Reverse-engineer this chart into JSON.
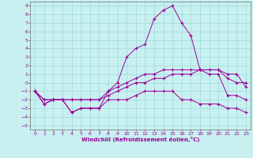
{
  "xlabel": "Windchill (Refroidissement éolien,°C)",
  "bg_color": "#c8f0f0",
  "line_color": "#990099",
  "grid_color": "#a0d8d8",
  "xlim": [
    -0.5,
    23.5
  ],
  "ylim": [
    -5.5,
    9.5
  ],
  "xticks": [
    0,
    1,
    2,
    3,
    4,
    5,
    6,
    7,
    8,
    9,
    10,
    11,
    12,
    13,
    14,
    15,
    16,
    17,
    18,
    19,
    20,
    21,
    22,
    23
  ],
  "yticks": [
    -5,
    -4,
    -3,
    -2,
    -1,
    0,
    1,
    2,
    3,
    4,
    5,
    6,
    7,
    8,
    9
  ],
  "lines": [
    {
      "x": [
        0,
        1,
        2,
        3,
        4,
        5,
        6,
        7,
        8,
        9,
        10,
        11,
        12,
        13,
        14,
        15,
        16,
        17,
        18,
        19,
        20,
        21,
        22,
        23
      ],
      "y": [
        -1,
        -2.5,
        -2,
        -2,
        -3.5,
        -3,
        -3,
        -3,
        -1,
        0,
        3,
        4,
        4.5,
        7.5,
        8.5,
        9,
        7,
        5.5,
        1.5,
        1,
        1,
        -1.5,
        -1.5,
        -2
      ]
    },
    {
      "x": [
        0,
        1,
        2,
        3,
        4,
        5,
        6,
        7,
        8,
        9,
        10,
        11,
        12,
        13,
        14,
        15,
        16,
        17,
        18,
        19,
        20,
        21,
        22,
        23
      ],
      "y": [
        -1,
        -2,
        -2,
        -2,
        -2,
        -2,
        -2,
        -2,
        -1,
        -0.5,
        0,
        0.5,
        1,
        1,
        1.5,
        1.5,
        1.5,
        1.5,
        1.5,
        1.5,
        1.5,
        0.5,
        0,
        0
      ]
    },
    {
      "x": [
        0,
        1,
        2,
        3,
        4,
        5,
        6,
        7,
        8,
        9,
        10,
        11,
        12,
        13,
        14,
        15,
        16,
        17,
        18,
        19,
        20,
        21,
        22,
        23
      ],
      "y": [
        -1,
        -2,
        -2,
        -2,
        -2,
        -2,
        -2,
        -2,
        -1.5,
        -1,
        -0.5,
        0,
        0,
        0.5,
        0.5,
        1,
        1,
        1,
        1.5,
        1.5,
        1.5,
        1,
        1,
        -0.5
      ]
    },
    {
      "x": [
        0,
        1,
        2,
        3,
        4,
        5,
        6,
        7,
        8,
        9,
        10,
        11,
        12,
        13,
        14,
        15,
        16,
        17,
        18,
        19,
        20,
        21,
        22,
        23
      ],
      "y": [
        -1,
        -2.5,
        -2,
        -2,
        -3.5,
        -3,
        -3,
        -3,
        -2,
        -2,
        -2,
        -1.5,
        -1,
        -1,
        -1,
        -1,
        -2,
        -2,
        -2.5,
        -2.5,
        -2.5,
        -3,
        -3,
        -3.5
      ]
    }
  ]
}
